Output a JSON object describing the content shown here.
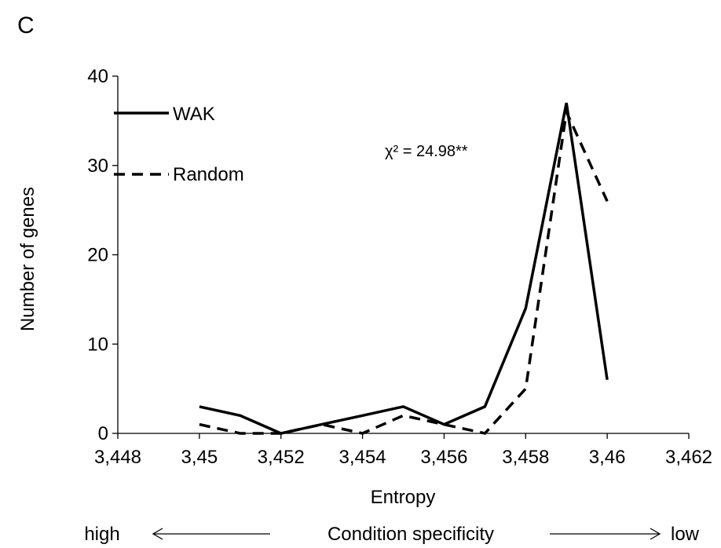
{
  "panel_label": "C",
  "chart_data": {
    "type": "line",
    "title": "",
    "xlabel": "Entropy",
    "ylabel": "Number of genes",
    "xlim": [
      3.448,
      3.462
    ],
    "ylim": [
      0,
      40
    ],
    "x_ticks": [
      3.448,
      3.45,
      3.452,
      3.454,
      3.456,
      3.458,
      3.46,
      3.462
    ],
    "x_tick_labels": [
      "3,448",
      "3,45",
      "3,452",
      "3,454",
      "3,456",
      "3,458",
      "3,46",
      "3,462"
    ],
    "y_ticks": [
      0,
      10,
      20,
      30,
      40
    ],
    "y_tick_labels": [
      "0",
      "10",
      "20",
      "30",
      "40"
    ],
    "grid": false,
    "legend_position": "top-left",
    "series": [
      {
        "name": "WAK",
        "line_style": "solid",
        "color": "#000000",
        "x": [
          3.45,
          3.451,
          3.452,
          3.453,
          3.454,
          3.455,
          3.456,
          3.457,
          3.458,
          3.459,
          3.46
        ],
        "y": [
          3,
          2,
          0,
          1,
          2,
          3,
          1,
          3,
          14,
          37,
          6
        ]
      },
      {
        "name": "Random",
        "line_style": "dashed",
        "color": "#000000",
        "x": [
          3.45,
          3.451,
          3.452,
          3.453,
          3.454,
          3.455,
          3.456,
          3.457,
          3.458,
          3.459,
          3.46
        ],
        "y": [
          1,
          0,
          0,
          1,
          0,
          2,
          1,
          0,
          5,
          36,
          26
        ]
      }
    ],
    "annotation": "χ² = 24.98**",
    "specificity_axis": {
      "left_label": "high",
      "center_label": "Condition specificity",
      "right_label": "low"
    }
  }
}
